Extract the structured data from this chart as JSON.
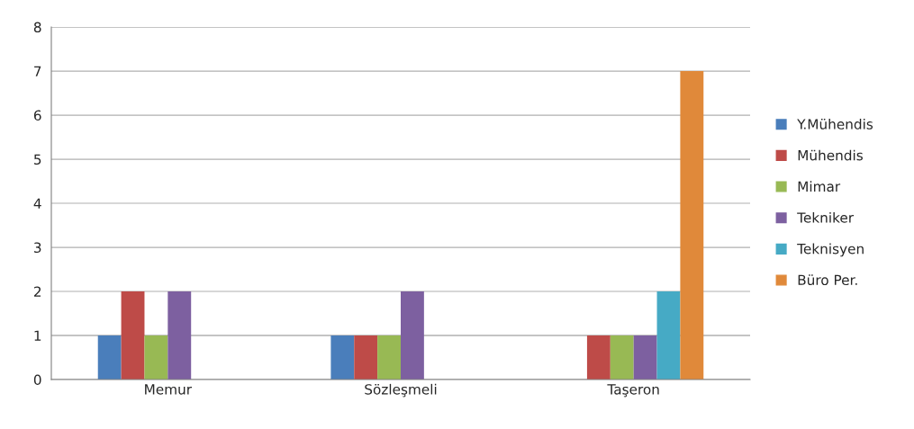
{
  "chart_data": {
    "type": "bar",
    "categories": [
      "Memur",
      "Sözleşmeli",
      "Taşeron"
    ],
    "series": [
      {
        "name": "Y.Mühendis",
        "color": "#4a7ebb",
        "values": [
          1,
          1,
          null
        ]
      },
      {
        "name": "Mühendis",
        "color": "#be4b48",
        "values": [
          2,
          1,
          1
        ]
      },
      {
        "name": "Mimar",
        "color": "#98b954",
        "values": [
          1,
          1,
          1
        ]
      },
      {
        "name": "Tekniker",
        "color": "#7d60a0",
        "values": [
          2,
          2,
          1
        ]
      },
      {
        "name": "Teknisyen",
        "color": "#46aac5",
        "values": [
          null,
          null,
          2
        ]
      },
      {
        "name": "Büro Per.",
        "color": "#e0893a",
        "values": [
          null,
          null,
          7
        ]
      }
    ],
    "ylim": [
      0,
      8
    ],
    "yticks": [
      0,
      1,
      2,
      3,
      4,
      5,
      6,
      7,
      8
    ],
    "grid": "y",
    "legend": "right"
  }
}
